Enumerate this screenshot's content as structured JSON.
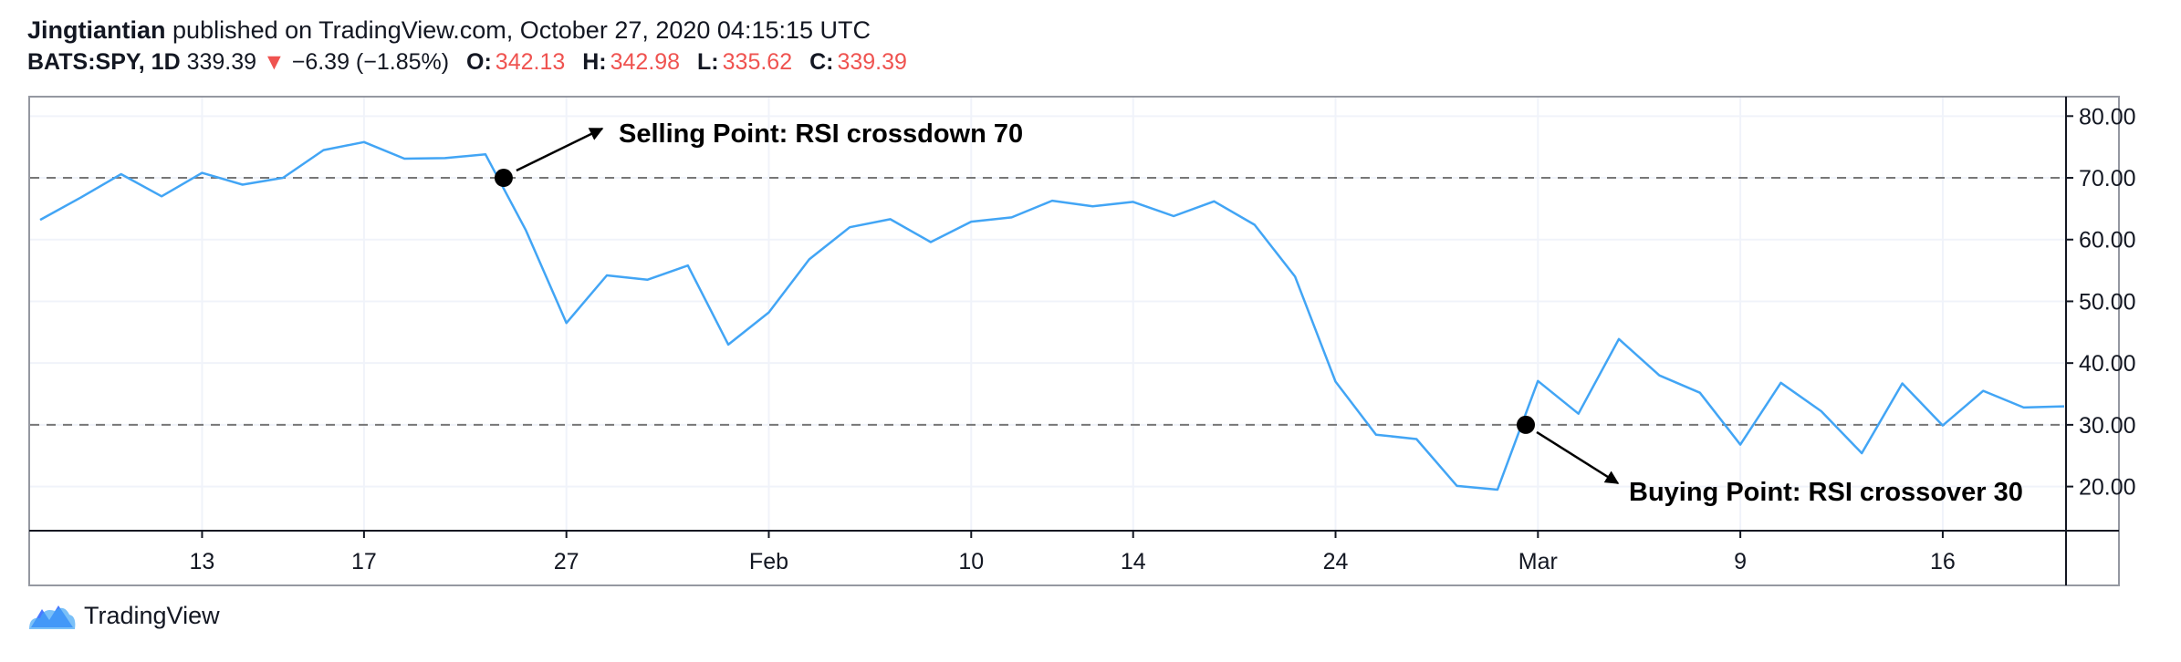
{
  "header": {
    "author": "Jingtiantian",
    "published": "published on TradingView.com, October 27, 2020 04:15:15 UTC",
    "symbol": "BATS:SPY, 1D",
    "price": "339.39",
    "change": "−6.39 (−1.85%)",
    "o_label": "O:",
    "o_value": "342.13",
    "h_label": "H:",
    "h_value": "342.98",
    "l_label": "L:",
    "l_value": "335.62",
    "c_label": "C:",
    "c_value": "339.39"
  },
  "footer": {
    "brand": "TradingView"
  },
  "colors": {
    "line": "#42a5f5",
    "down": "#ef5350",
    "axis": "#131722",
    "dashed": "#777777"
  },
  "chart_data": {
    "type": "line",
    "series": [
      {
        "values": [
          63.2,
          66.8,
          70.6,
          67.0,
          70.8,
          68.9,
          70.0,
          74.5,
          75.8,
          73.1,
          73.2,
          73.8,
          61.5,
          46.5,
          54.2,
          53.5,
          55.8,
          43.0,
          48.2,
          56.8,
          62.0,
          63.3,
          59.6,
          62.9,
          63.6,
          66.3,
          65.4,
          66.1,
          63.8,
          66.2,
          62.4,
          54.0,
          37.0,
          28.4,
          27.7,
          20.1,
          19.5,
          37.1,
          31.8,
          43.9,
          38.0,
          35.2,
          26.8,
          36.8,
          32.2,
          25.4,
          36.7,
          29.9,
          35.5,
          32.8,
          33.0
        ]
      }
    ],
    "x_ticks": [
      {
        "label": "13",
        "index": 4
      },
      {
        "label": "17",
        "index": 8
      },
      {
        "label": "27",
        "index": 13
      },
      {
        "label": "Feb",
        "index": 18
      },
      {
        "label": "10",
        "index": 23
      },
      {
        "label": "14",
        "index": 27
      },
      {
        "label": "24",
        "index": 32
      },
      {
        "label": "Mar",
        "index": 37
      },
      {
        "label": "9",
        "index": 42
      },
      {
        "label": "16",
        "index": 47
      }
    ],
    "y_ticks": [
      "80.00",
      "70.00",
      "60.00",
      "50.00",
      "40.00",
      "30.00",
      "20.00"
    ],
    "ylim": [
      13,
      83
    ],
    "reference_lines": [
      70,
      30
    ],
    "annotations": [
      {
        "text": "Selling Point: RSI crossdown 70",
        "index": 11.45,
        "value": 70
      },
      {
        "text": "Buying Point: RSI crossover 30",
        "index": 36.7,
        "value": 30
      }
    ]
  }
}
